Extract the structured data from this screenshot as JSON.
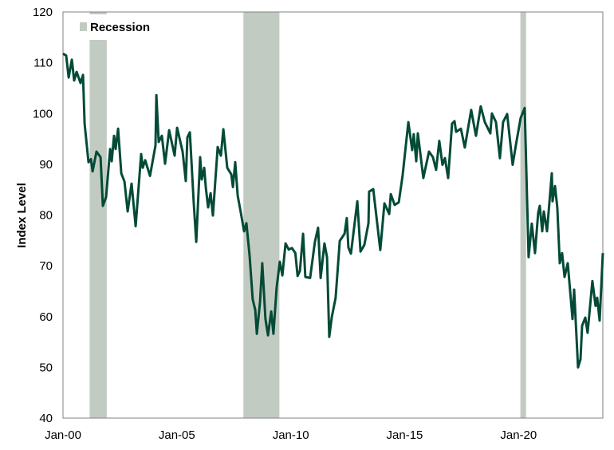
{
  "chart_data": {
    "type": "line",
    "title": "",
    "xlabel": "",
    "ylabel": "Index Level",
    "ylim": [
      40,
      120
    ],
    "xlim": [
      2000,
      2023.7
    ],
    "yticks": [
      40,
      50,
      60,
      70,
      80,
      90,
      100,
      110,
      120
    ],
    "xticks": [
      {
        "label": "Jan-00",
        "x": 2000
      },
      {
        "label": "Jan-05",
        "x": 2005
      },
      {
        "label": "Jan-10",
        "x": 2010
      },
      {
        "label": "Jan-15",
        "x": 2015
      },
      {
        "label": "Jan-20",
        "x": 2020
      }
    ],
    "grid": false,
    "legend": {
      "position": "top-left",
      "entries": [
        "Recession"
      ]
    },
    "colors": {
      "line": "#034a37",
      "recession": "#c2cbc2",
      "axis": "#808080"
    },
    "recessions": [
      [
        2001.17,
        2001.92
      ],
      [
        2007.92,
        2009.5
      ],
      [
        2020.08,
        2020.33
      ]
    ],
    "series": [
      {
        "name": "Index Level",
        "x": [
          2000.0,
          2000.14,
          2000.25,
          2000.39,
          2000.49,
          2000.6,
          2000.77,
          2000.88,
          2000.95,
          2001.12,
          2001.23,
          2001.3,
          2001.47,
          2001.65,
          2001.75,
          2001.89,
          2002.07,
          2002.14,
          2002.24,
          2002.31,
          2002.42,
          2002.56,
          2002.7,
          2002.84,
          2003.01,
          2003.19,
          2003.43,
          2003.5,
          2003.61,
          2003.82,
          2004.06,
          2004.1,
          2004.2,
          2004.34,
          2004.48,
          2004.66,
          2004.9,
          2005.01,
          2005.25,
          2005.39,
          2005.46,
          2005.57,
          2005.74,
          2005.85,
          2006.02,
          2006.09,
          2006.2,
          2006.27,
          2006.37,
          2006.48,
          2006.58,
          2006.79,
          2006.93,
          2007.04,
          2007.21,
          2007.39,
          2007.46,
          2007.56,
          2007.67,
          2007.81,
          2007.95,
          2008.05,
          2008.19,
          2008.33,
          2008.44,
          2008.51,
          2008.65,
          2008.75,
          2008.89,
          2009.0,
          2009.14,
          2009.24,
          2009.38,
          2009.52,
          2009.63,
          2009.77,
          2009.91,
          2010.05,
          2010.2,
          2010.3,
          2010.4,
          2010.54,
          2010.64,
          2010.85,
          2011.06,
          2011.2,
          2011.31,
          2011.48,
          2011.59,
          2011.69,
          2011.8,
          2011.97,
          2012.15,
          2012.36,
          2012.46,
          2012.53,
          2012.64,
          2012.92,
          2013.06,
          2013.23,
          2013.41,
          2013.44,
          2013.62,
          2013.93,
          2014.11,
          2014.32,
          2014.39,
          2014.56,
          2014.74,
          2014.91,
          2015.16,
          2015.33,
          2015.4,
          2015.51,
          2015.58,
          2015.82,
          2016.07,
          2016.24,
          2016.38,
          2016.52,
          2016.66,
          2016.77,
          2016.91,
          2017.08,
          2017.19,
          2017.26,
          2017.47,
          2017.64,
          2017.92,
          2018.13,
          2018.34,
          2018.52,
          2018.76,
          2018.83,
          2019.01,
          2019.18,
          2019.32,
          2019.5,
          2019.74,
          2019.88,
          2020.09,
          2020.27,
          2020.44,
          2020.58,
          2020.72,
          2020.86,
          2020.93,
          2021.04,
          2021.11,
          2021.25,
          2021.46,
          2021.49,
          2021.6,
          2021.7,
          2021.81,
          2021.91,
          2022.02,
          2022.16,
          2022.37,
          2022.44,
          2022.61,
          2022.72,
          2022.79,
          2022.93,
          2023.03,
          2023.24,
          2023.38,
          2023.45,
          2023.56,
          2023.7
        ],
        "y": [
          111.8,
          111.4,
          107.1,
          110.6,
          106.5,
          108.2,
          106.0,
          107.6,
          98.0,
          90.4,
          91.0,
          88.6,
          92.5,
          91.4,
          81.8,
          83.5,
          93.0,
          90.6,
          95.6,
          93.0,
          97.0,
          88.2,
          86.6,
          80.7,
          86.2,
          77.8,
          92.0,
          89.3,
          90.8,
          87.7,
          93.7,
          103.6,
          94.4,
          95.6,
          90.1,
          96.7,
          91.7,
          97.2,
          92.5,
          86.7,
          95.3,
          96.3,
          82.3,
          74.7,
          91.4,
          87.0,
          89.3,
          85.4,
          81.5,
          84.3,
          79.9,
          93.4,
          91.7,
          96.9,
          89.3,
          88.0,
          85.5,
          90.4,
          83.8,
          80.4,
          76.8,
          78.4,
          72.0,
          63.4,
          61.3,
          56.6,
          62.9,
          70.5,
          59.5,
          56.3,
          61.0,
          56.6,
          65.7,
          70.8,
          68.1,
          74.4,
          73.2,
          73.5,
          72.5,
          68.0,
          69.0,
          76.3,
          67.8,
          67.6,
          74.7,
          77.5,
          67.6,
          74.4,
          71.7,
          56.0,
          59.9,
          63.7,
          74.9,
          76.3,
          79.4,
          73.6,
          72.4,
          82.7,
          72.8,
          74.1,
          78.4,
          84.6,
          85.1,
          73.1,
          82.3,
          80.2,
          84.1,
          82.0,
          82.5,
          87.8,
          98.3,
          92.8,
          95.9,
          90.6,
          96.1,
          87.3,
          92.5,
          91.4,
          88.9,
          94.6,
          89.9,
          91.2,
          87.3,
          98.0,
          98.5,
          96.4,
          97.0,
          93.3,
          100.7,
          95.6,
          101.4,
          98.3,
          96.1,
          100.0,
          98.3,
          91.2,
          98.3,
          99.9,
          89.9,
          93.7,
          99.1,
          101.1,
          71.7,
          78.3,
          72.5,
          80.4,
          81.8,
          76.8,
          80.7,
          76.8,
          88.2,
          82.7,
          85.7,
          81.5,
          70.5,
          72.5,
          67.8,
          70.5,
          59.5,
          65.3,
          50.0,
          51.6,
          58.2,
          59.8,
          56.8,
          67.0,
          62.1,
          63.7,
          59.2,
          72.5
        ]
      }
    ]
  }
}
